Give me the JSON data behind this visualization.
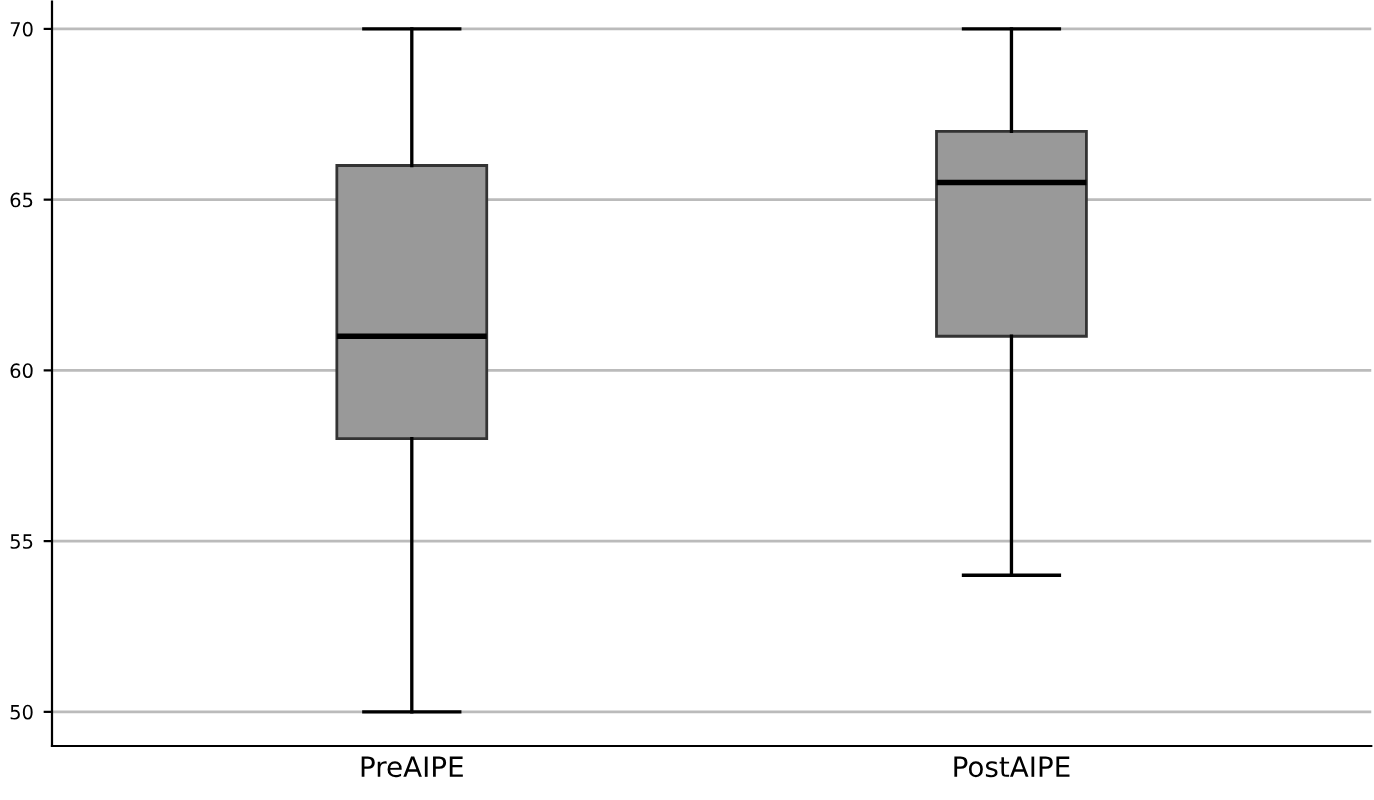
{
  "chart_data": {
    "type": "box",
    "categories": [
      "PreAIPE",
      "PostAIPE"
    ],
    "boxes": [
      {
        "low": 50,
        "q1": 58,
        "median": 61,
        "q3": 66,
        "high": 70
      },
      {
        "low": 54,
        "q1": 61,
        "median": 65.5,
        "q3": 67,
        "high": 70
      }
    ],
    "color": "#999999",
    "ylim": [
      49,
      70.8
    ],
    "yticks": [
      50,
      55,
      60,
      65,
      70
    ],
    "grid": "y"
  }
}
